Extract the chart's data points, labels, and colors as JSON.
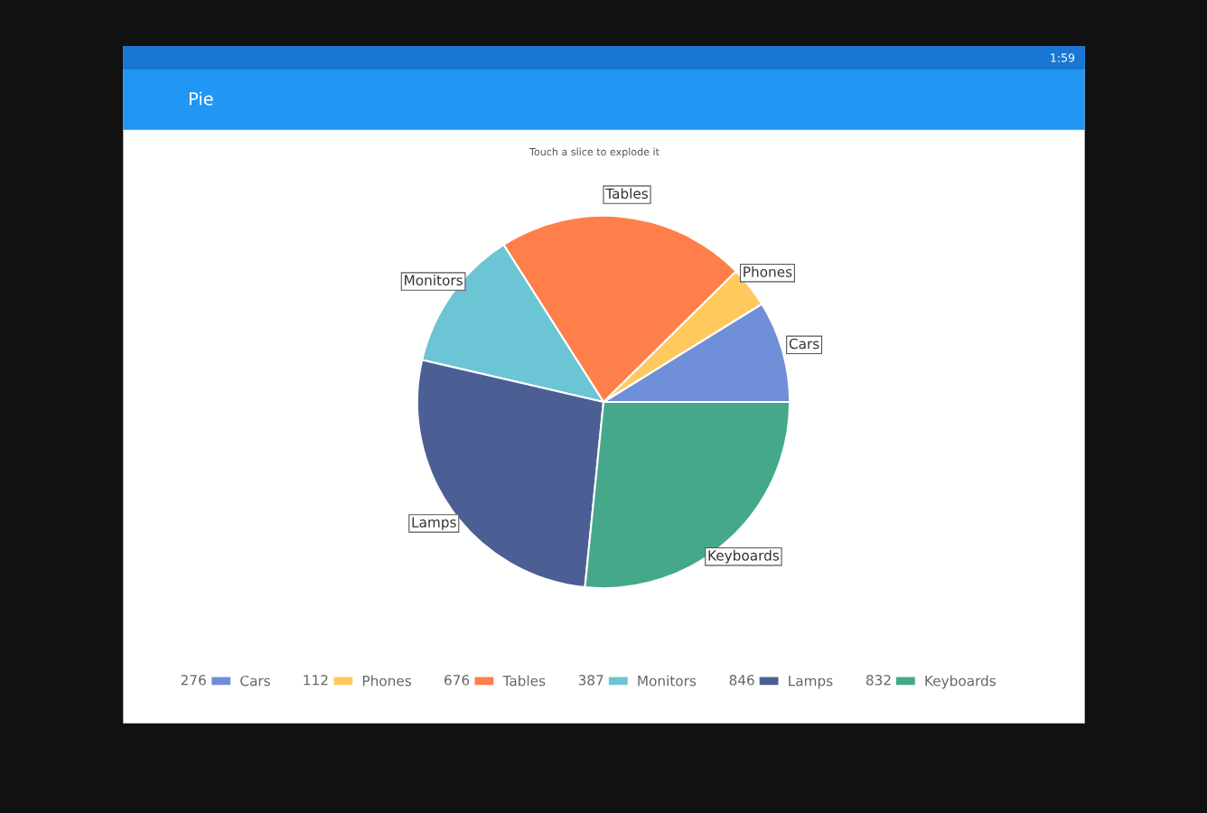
{
  "chart_data": {
    "type": "pie",
    "title": "Pie",
    "subtitle": "Touch a slice to explode it",
    "categories": [
      "Cars",
      "Phones",
      "Tables",
      "Monitors",
      "Lamps",
      "Keyboards"
    ],
    "values": [
      276,
      112,
      676,
      387,
      846,
      832
    ],
    "colors": [
      "#6f8fd8",
      "#ffc95e",
      "#ff7f4a",
      "#6cc5d5",
      "#4c5f95",
      "#45a88a"
    ],
    "value_labels": [
      "276",
      "112",
      "676",
      "387",
      "846",
      "832"
    ],
    "annotations": [
      "1:59"
    ],
    "legend": "bottom"
  }
}
